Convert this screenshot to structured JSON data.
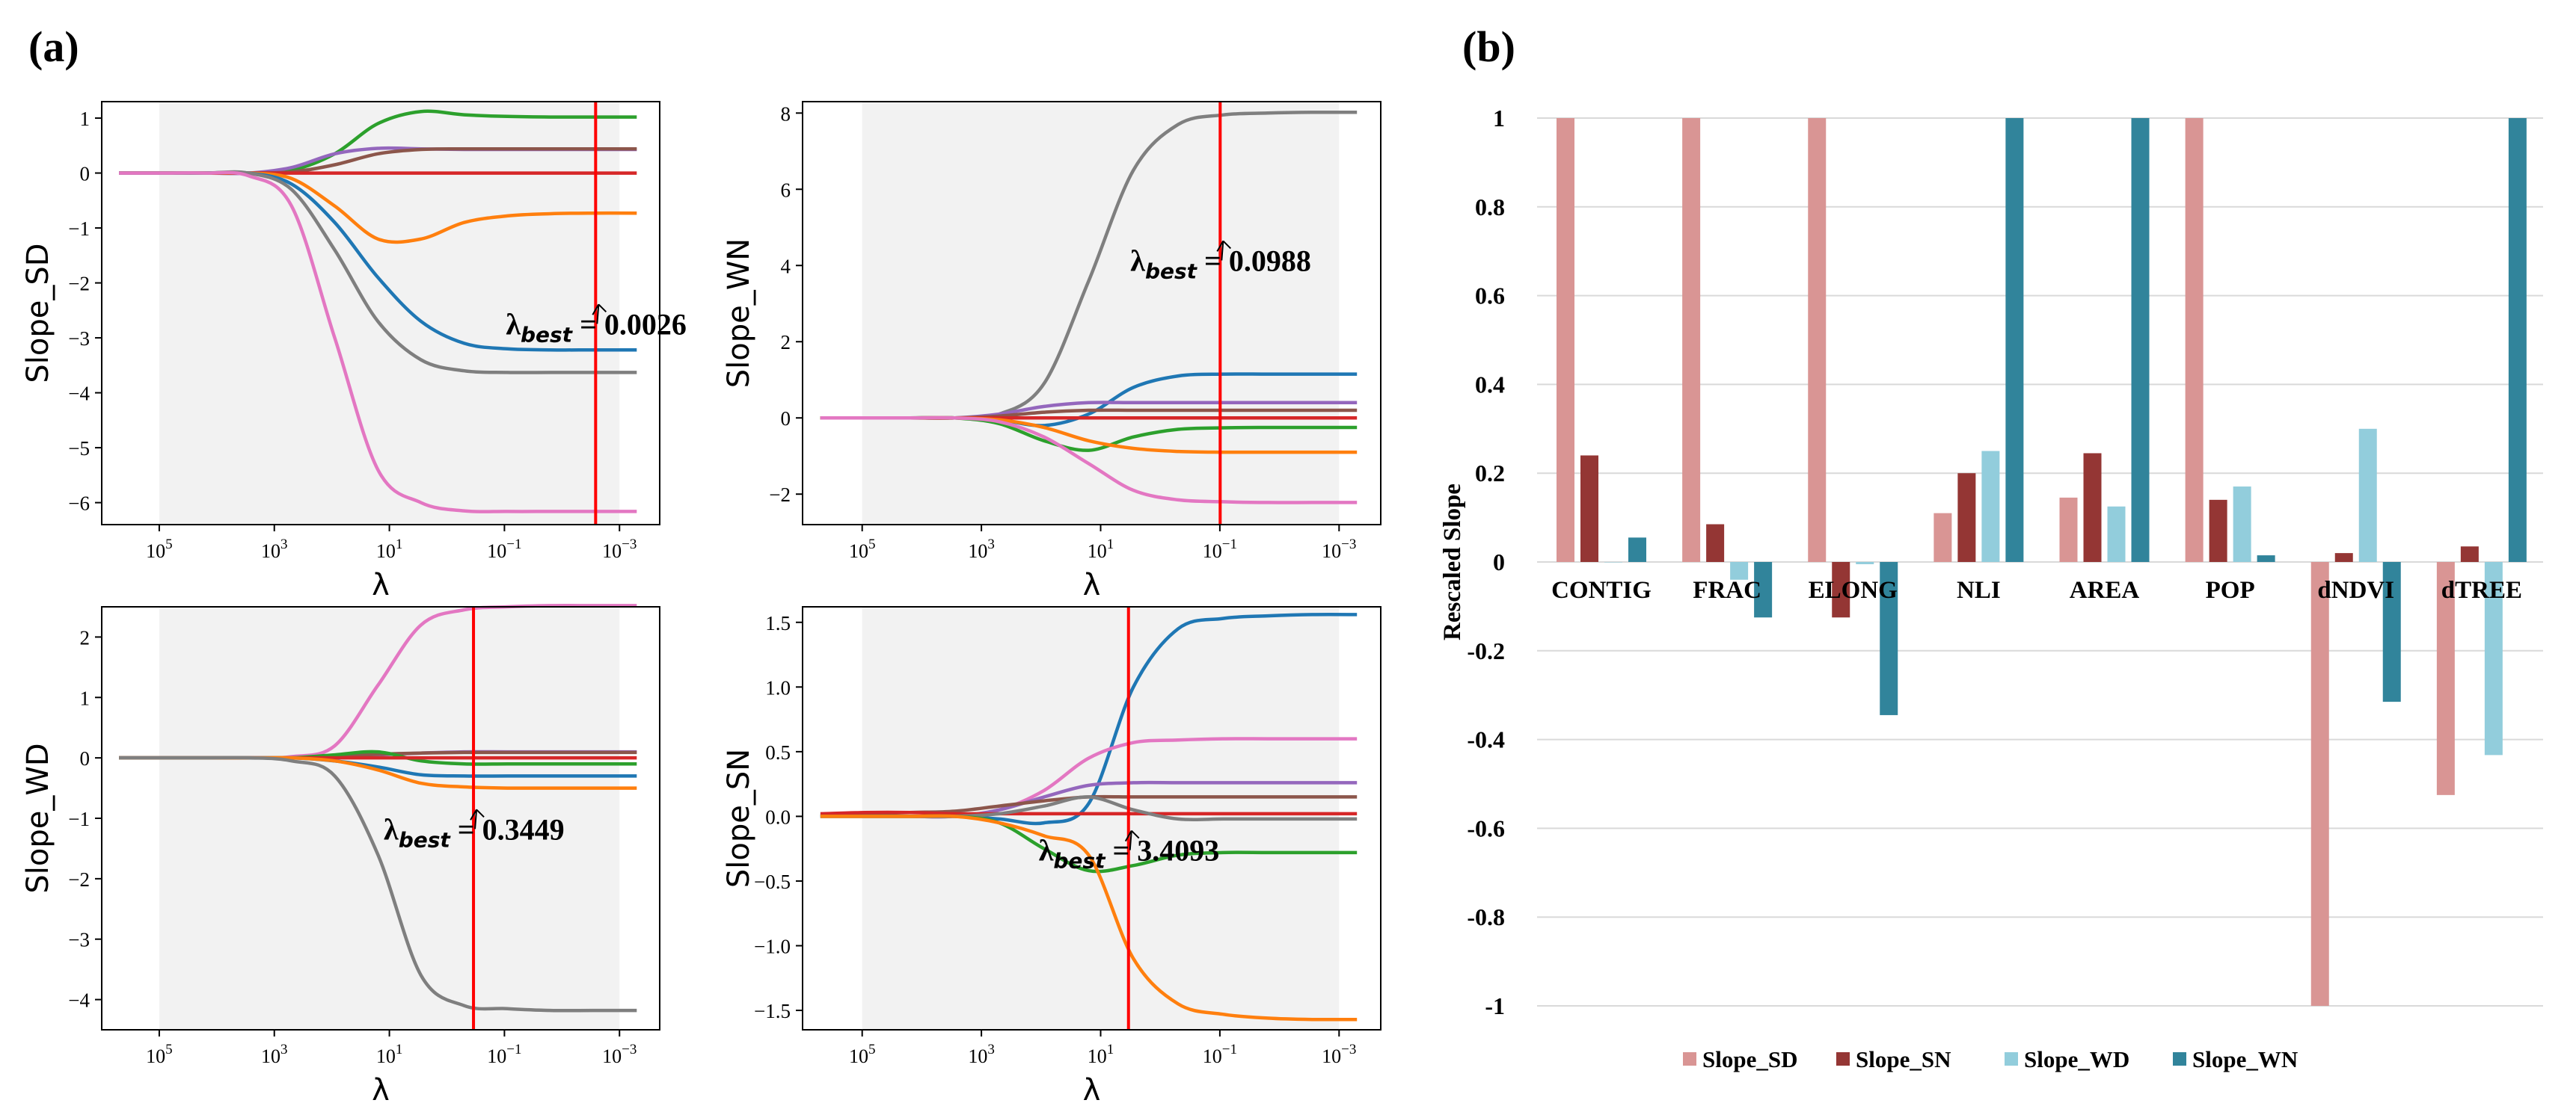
{
  "panels": {
    "a_label": "(a)",
    "b_label": "(b)"
  },
  "chart_data": [
    {
      "type": "line",
      "panel": "a",
      "ylabel": "Slope_SD",
      "xlabel": "λ",
      "x_scale": "log-reversed",
      "xlim": [
        1000000,
        0.0002
      ],
      "ylim": [
        -6.4,
        1.3
      ],
      "yticks": [
        -6,
        -5,
        -4,
        -3,
        -2,
        -1,
        0,
        1
      ],
      "xticks": [
        100000,
        1000,
        10,
        0.1,
        0.001
      ],
      "shaded_region": [
        100000,
        0.001
      ],
      "best_lambda": 0.0026,
      "annotation": {
        "prefix": "λ",
        "subscript": "best",
        "value": "= 0.0026"
      },
      "series": [
        {
          "color": "#2ca02c",
          "values": [
            0,
            0,
            0,
            0,
            0.05,
            0.35,
            0.9,
            1.12,
            1.06,
            1.03,
            1.02,
            1.02,
            1.02
          ]
        },
        {
          "color": "#9467bd",
          "values": [
            0,
            0,
            0,
            0,
            0.1,
            0.35,
            0.45,
            0.44,
            0.43,
            0.43,
            0.43,
            0.43,
            0.43
          ]
        },
        {
          "color": "#8c564b",
          "values": [
            0,
            0,
            0,
            0,
            0.02,
            0.15,
            0.35,
            0.43,
            0.44,
            0.44,
            0.44,
            0.44,
            0.44
          ]
        },
        {
          "color": "#d62728",
          "values": [
            0,
            0,
            0,
            0,
            0,
            0,
            0,
            0,
            0,
            0,
            0,
            0,
            0
          ]
        },
        {
          "color": "#ff7f0e",
          "values": [
            0,
            0,
            0,
            0,
            -0.1,
            -0.6,
            -1.2,
            -1.2,
            -0.9,
            -0.78,
            -0.74,
            -0.73,
            -0.73
          ]
        },
        {
          "color": "#1f77b4",
          "values": [
            0,
            0,
            0,
            0,
            -0.2,
            -0.9,
            -1.9,
            -2.7,
            -3.1,
            -3.2,
            -3.22,
            -3.22,
            -3.22
          ]
        },
        {
          "color": "#7f7f7f",
          "values": [
            0,
            0,
            0,
            0,
            -0.3,
            -1.4,
            -2.7,
            -3.4,
            -3.6,
            -3.63,
            -3.63,
            -3.63,
            -3.63
          ]
        },
        {
          "color": "#e377c2",
          "values": [
            0,
            0,
            0,
            -0.05,
            -0.6,
            -3.0,
            -5.4,
            -6.0,
            -6.15,
            -6.16,
            -6.16,
            -6.16,
            -6.16
          ]
        }
      ]
    },
    {
      "type": "line",
      "panel": "a",
      "ylabel": "Slope_WN",
      "xlabel": "λ",
      "x_scale": "log-reversed",
      "xlim": [
        1000000,
        0.0002
      ],
      "ylim": [
        -2.8,
        8.3
      ],
      "yticks": [
        -2,
        0,
        2,
        4,
        6,
        8
      ],
      "xticks": [
        100000,
        1000,
        10,
        0.1,
        0.001
      ],
      "shaded_region": [
        100000,
        0.001
      ],
      "best_lambda": 0.0988,
      "annotation": {
        "prefix": "λ",
        "subscript": "best",
        "value": "= 0.0988"
      },
      "series": [
        {
          "color": "#7f7f7f",
          "values": [
            0,
            0,
            0,
            0,
            0.1,
            0.9,
            3.6,
            6.5,
            7.7,
            7.95,
            8.0,
            8.02,
            8.02
          ]
        },
        {
          "color": "#1f77b4",
          "values": [
            0,
            0,
            0,
            0,
            -0.05,
            -0.2,
            0.1,
            0.8,
            1.1,
            1.15,
            1.15,
            1.15,
            1.15
          ]
        },
        {
          "color": "#9467bd",
          "values": [
            0,
            0,
            0,
            0,
            0.1,
            0.3,
            0.4,
            0.4,
            0.4,
            0.4,
            0.4,
            0.4,
            0.4
          ]
        },
        {
          "color": "#8c564b",
          "values": [
            0,
            0,
            0,
            0,
            0.05,
            0.15,
            0.2,
            0.2,
            0.2,
            0.2,
            0.2,
            0.2,
            0.2
          ]
        },
        {
          "color": "#d62728",
          "values": [
            0,
            0,
            0,
            0,
            0,
            0,
            0,
            0,
            0,
            0,
            0,
            0,
            0
          ]
        },
        {
          "color": "#2ca02c",
          "values": [
            0,
            0,
            0,
            0,
            -0.15,
            -0.6,
            -0.85,
            -0.5,
            -0.3,
            -0.26,
            -0.25,
            -0.25,
            -0.25
          ]
        },
        {
          "color": "#ff7f0e",
          "values": [
            0,
            0,
            0,
            0,
            -0.05,
            -0.25,
            -0.6,
            -0.8,
            -0.88,
            -0.9,
            -0.9,
            -0.9,
            -0.9
          ]
        },
        {
          "color": "#e377c2",
          "values": [
            0,
            0,
            0,
            0,
            -0.1,
            -0.5,
            -1.2,
            -1.9,
            -2.15,
            -2.2,
            -2.22,
            -2.22,
            -2.22
          ]
        }
      ]
    },
    {
      "type": "line",
      "panel": "a",
      "ylabel": "Slope_WD",
      "xlabel": "λ",
      "x_scale": "log-reversed",
      "xlim": [
        1000000,
        0.0002
      ],
      "ylim": [
        -4.5,
        2.5
      ],
      "yticks": [
        -4,
        -3,
        -2,
        -1,
        0,
        1,
        2
      ],
      "xticks": [
        100000,
        1000,
        10,
        0.1,
        0.001
      ],
      "shaded_region": [
        100000,
        0.001
      ],
      "best_lambda": 0.3449,
      "annotation": {
        "prefix": "λ",
        "subscript": "best",
        "value": "= 0.3449"
      },
      "series": [
        {
          "color": "#e377c2",
          "values": [
            0,
            0,
            0,
            0,
            0.02,
            0.2,
            1.2,
            2.2,
            2.45,
            2.5,
            2.52,
            2.52,
            2.52
          ]
        },
        {
          "color": "#9467bd",
          "values": [
            0,
            0,
            0,
            0,
            0,
            0.02,
            0.05,
            0.08,
            0.1,
            0.1,
            0.1,
            0.1,
            0.1
          ]
        },
        {
          "color": "#8c564b",
          "values": [
            0,
            0,
            0,
            0,
            0,
            0.03,
            0.06,
            0.08,
            0.09,
            0.09,
            0.09,
            0.09,
            0.09
          ]
        },
        {
          "color": "#2ca02c",
          "values": [
            0,
            0,
            0,
            0,
            0,
            0.05,
            0.1,
            -0.05,
            -0.1,
            -0.1,
            -0.1,
            -0.1,
            -0.1
          ]
        },
        {
          "color": "#d62728",
          "values": [
            0,
            0,
            0,
            0,
            0,
            0,
            0,
            0,
            0,
            0,
            0,
            0,
            0
          ]
        },
        {
          "color": "#1f77b4",
          "values": [
            0,
            0,
            0,
            0,
            0,
            -0.05,
            -0.15,
            -0.28,
            -0.3,
            -0.3,
            -0.3,
            -0.3,
            -0.3
          ]
        },
        {
          "color": "#ff7f0e",
          "values": [
            0,
            0,
            0,
            0,
            0,
            -0.05,
            -0.2,
            -0.42,
            -0.48,
            -0.5,
            -0.5,
            -0.5,
            -0.5
          ]
        },
        {
          "color": "#7f7f7f",
          "values": [
            0,
            0,
            0,
            0,
            -0.05,
            -0.3,
            -1.6,
            -3.6,
            -4.1,
            -4.15,
            -4.18,
            -4.18,
            -4.18
          ]
        }
      ]
    },
    {
      "type": "line",
      "panel": "a",
      "ylabel": "Slope_SN",
      "xlabel": "λ",
      "x_scale": "log-reversed",
      "xlim": [
        1000000,
        0.0002
      ],
      "ylim": [
        -1.65,
        1.62
      ],
      "yticks": [
        -1.5,
        -1.0,
        -0.5,
        0.0,
        0.5,
        1.0,
        1.5
      ],
      "xticks": [
        100000,
        1000,
        10,
        0.1,
        0.001
      ],
      "shaded_region": [
        100000,
        0.001
      ],
      "best_lambda": 3.4093,
      "annotation": {
        "prefix": "λ",
        "subscript": "best",
        "value": "= 3.4093"
      },
      "series": [
        {
          "color": "#1f77b4",
          "values": [
            0,
            0,
            0,
            0,
            -0.02,
            -0.05,
            0.1,
            1.0,
            1.45,
            1.53,
            1.55,
            1.56,
            1.56
          ]
        },
        {
          "color": "#e377c2",
          "values": [
            0,
            0,
            0,
            0,
            0.05,
            0.2,
            0.45,
            0.57,
            0.59,
            0.6,
            0.6,
            0.6,
            0.6
          ]
        },
        {
          "color": "#9467bd",
          "values": [
            0,
            0,
            0,
            0,
            0.05,
            0.15,
            0.24,
            0.26,
            0.26,
            0.26,
            0.26,
            0.26,
            0.26
          ]
        },
        {
          "color": "#8c564b",
          "values": [
            0.01,
            0.02,
            0.03,
            0.04,
            0.08,
            0.12,
            0.15,
            0.15,
            0.15,
            0.15,
            0.15,
            0.15,
            0.15
          ]
        },
        {
          "color": "#d62728",
          "values": [
            0.02,
            0.03,
            0.03,
            0.02,
            0.02,
            0.02,
            0.02,
            0.02,
            0.02,
            0.02,
            0.02,
            0.02,
            0.02
          ]
        },
        {
          "color": "#7f7f7f",
          "values": [
            0,
            0,
            0,
            0,
            0.02,
            0.08,
            0.15,
            0.05,
            -0.02,
            -0.02,
            -0.02,
            -0.02,
            -0.02
          ]
        },
        {
          "color": "#2ca02c",
          "values": [
            0,
            0,
            0,
            0,
            -0.05,
            -0.25,
            -0.42,
            -0.38,
            -0.3,
            -0.28,
            -0.28,
            -0.28,
            -0.28
          ]
        },
        {
          "color": "#ff7f0e",
          "values": [
            0,
            0,
            0,
            0,
            -0.05,
            -0.15,
            -0.3,
            -1.1,
            -1.45,
            -1.53,
            -1.56,
            -1.57,
            -1.57
          ]
        }
      ]
    },
    {
      "type": "bar",
      "panel": "b",
      "title": "",
      "xlabel": "",
      "ylabel": "Rescaled Slope",
      "ylim": [
        -1,
        1
      ],
      "yticks": [
        -1,
        -0.8,
        -0.6,
        -0.4,
        -0.2,
        0,
        0.2,
        0.4,
        0.6,
        0.8,
        1
      ],
      "categories": [
        "CONTIG",
        "FRAC",
        "ELONG",
        "NLI",
        "AREA",
        "POP",
        "dNDVI",
        "dTREE"
      ],
      "series": [
        {
          "name": "Slope_SD",
          "color": "#d99594",
          "values": [
            1.0,
            1.0,
            1.0,
            0.11,
            0.145,
            1.0,
            -1.0,
            -0.525
          ]
        },
        {
          "name": "Slope_SN",
          "color": "#943634",
          "values": [
            0.24,
            0.085,
            -0.125,
            0.2,
            0.245,
            0.14,
            0.02,
            0.035
          ]
        },
        {
          "name": "Slope_WD",
          "color": "#92cddc",
          "values": [
            0.0,
            -0.04,
            -0.005,
            0.25,
            0.125,
            0.17,
            0.3,
            -0.435
          ]
        },
        {
          "name": "Slope_WN",
          "color": "#31849b",
          "values": [
            0.055,
            -0.125,
            -0.345,
            1.0,
            1.0,
            0.015,
            -0.315,
            1.0
          ]
        }
      ],
      "legend_position": "bottom"
    }
  ]
}
